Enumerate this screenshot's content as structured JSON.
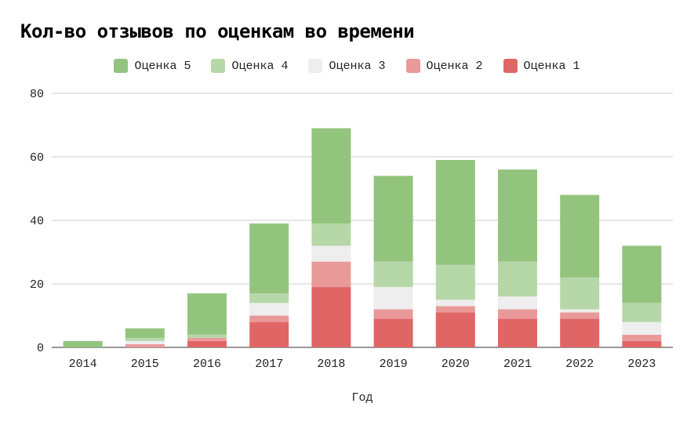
{
  "chart_data": {
    "type": "bar",
    "stacked": true,
    "title": "Кол-во отзывов по оценкам во времени",
    "xlabel": "Год",
    "ylabel": "",
    "ylim": [
      0,
      80
    ],
    "yticks": [
      0,
      20,
      40,
      60,
      80
    ],
    "grid": true,
    "legend_position": "top",
    "categories": [
      "2014",
      "2015",
      "2016",
      "2017",
      "2018",
      "2019",
      "2020",
      "2021",
      "2022",
      "2023"
    ],
    "series": [
      {
        "name": "Оценка 1",
        "color": "#e06666",
        "values": [
          0,
          0,
          2,
          8,
          19,
          9,
          11,
          9,
          9,
          2
        ]
      },
      {
        "name": "Оценка 2",
        "color": "#ea9999",
        "values": [
          0,
          1,
          1,
          2,
          8,
          3,
          2,
          3,
          2,
          2
        ]
      },
      {
        "name": "Оценка 3",
        "color": "#eeeeee",
        "values": [
          0,
          1,
          0,
          4,
          5,
          7,
          2,
          4,
          1,
          4
        ]
      },
      {
        "name": "Оценка 4",
        "color": "#b6d7a8",
        "values": [
          0,
          1,
          1,
          3,
          7,
          8,
          11,
          11,
          10,
          6
        ]
      },
      {
        "name": "Оценка 5",
        "color": "#93c47d",
        "values": [
          2,
          3,
          13,
          22,
          30,
          27,
          33,
          29,
          26,
          18
        ]
      }
    ],
    "legend_order": [
      "Оценка 5",
      "Оценка 4",
      "Оценка 3",
      "Оценка 2",
      "Оценка 1"
    ]
  }
}
